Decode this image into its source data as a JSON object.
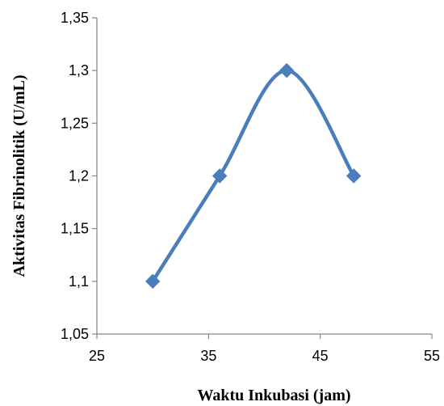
{
  "chart_data": {
    "type": "scatter",
    "title": "",
    "xlabel": "Waktu Inkubasi (jam)",
    "ylabel": "Aktivitas Fibrinolitik (U/mL)",
    "xlim": [
      25,
      55
    ],
    "ylim": [
      1.05,
      1.35
    ],
    "xticks": [
      25,
      35,
      45,
      55
    ],
    "xtick_labels": [
      "25",
      "35",
      "45",
      "55"
    ],
    "yticks": [
      1.05,
      1.1,
      1.15,
      1.2,
      1.25,
      1.3,
      1.35
    ],
    "ytick_labels": [
      "1,05",
      "1,1",
      "1,15",
      "1,2",
      "1,25",
      "1,3",
      "1,35"
    ],
    "grid": false,
    "legend": "none",
    "smooth_line": true,
    "marker": "diamond",
    "color": "#4a7ebb",
    "series": [
      {
        "x": [
          30,
          36,
          42,
          48
        ],
        "y": [
          1.1,
          1.2,
          1.3,
          1.2
        ]
      }
    ]
  }
}
